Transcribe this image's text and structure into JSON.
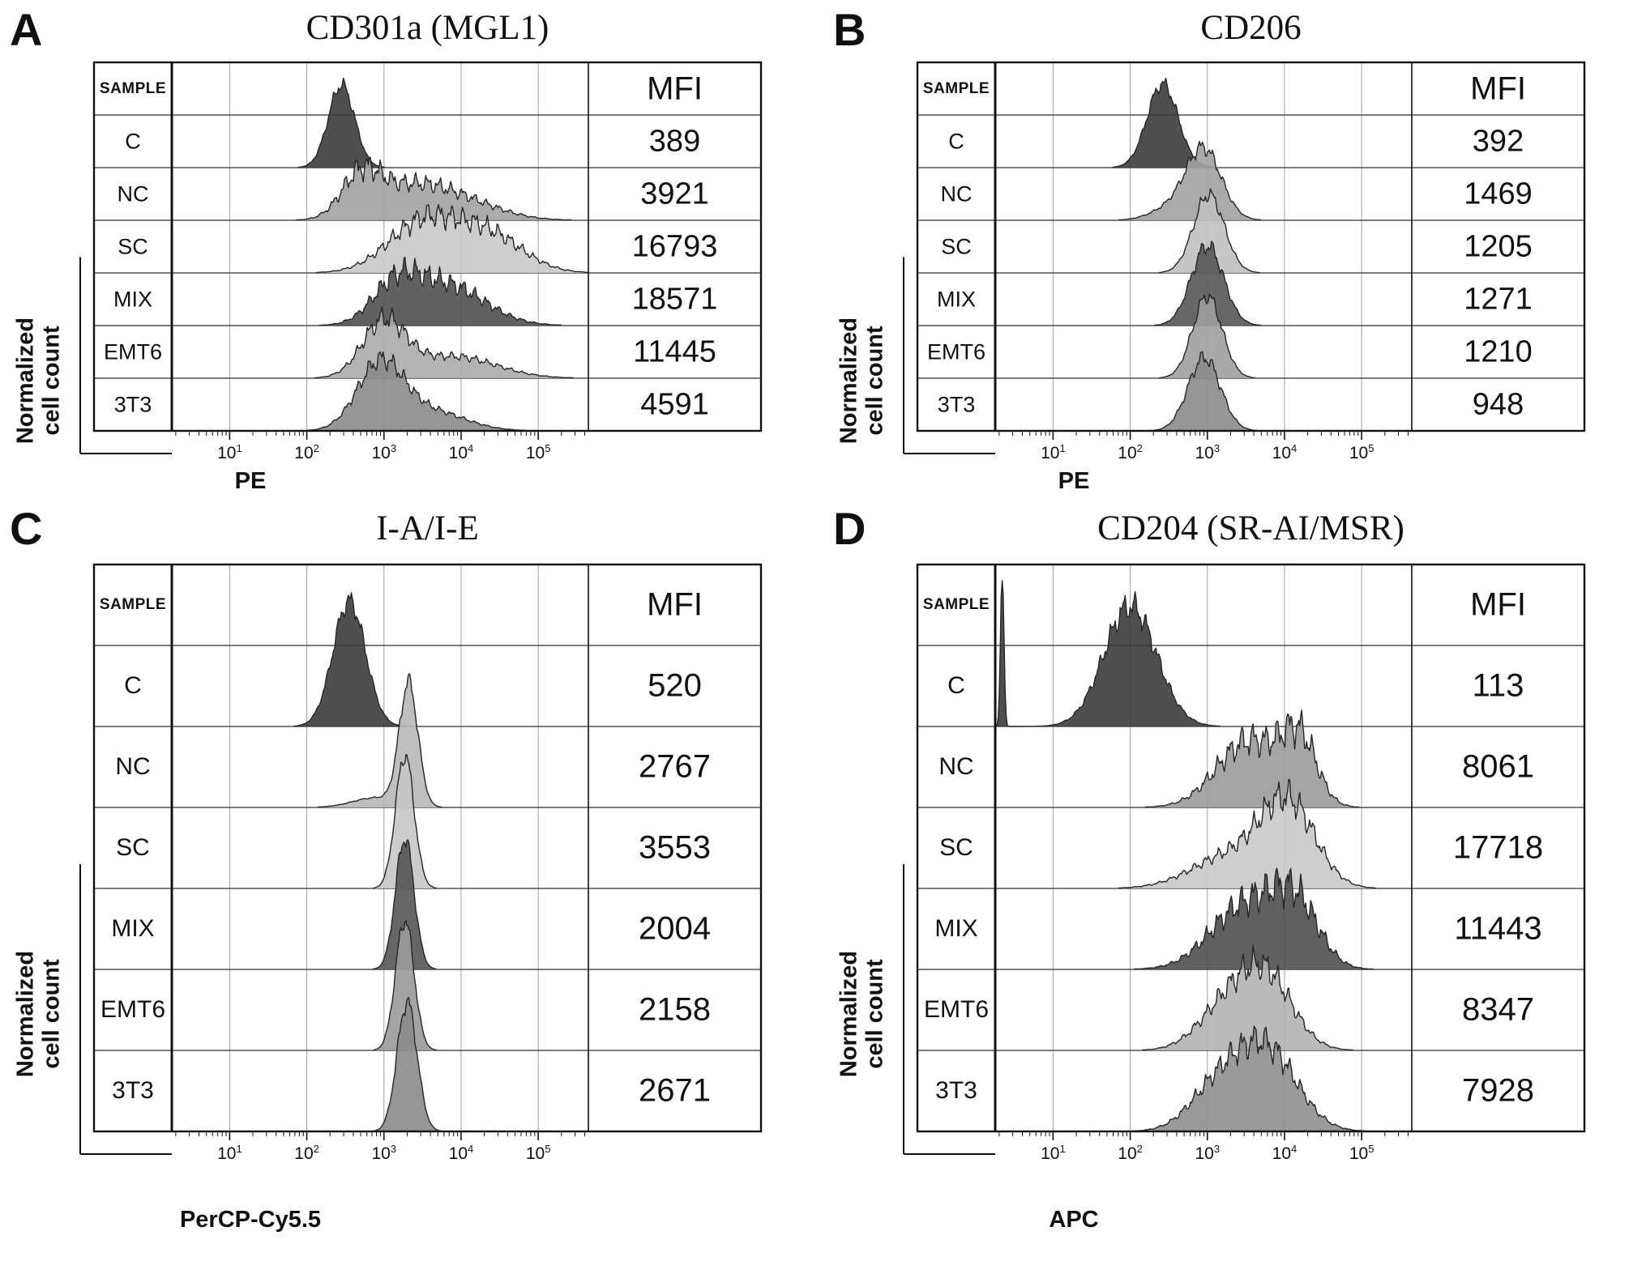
{
  "figure": {
    "x_tick_base": "10",
    "x_tick_exponents": [
      "1",
      "2",
      "3",
      "4",
      "5"
    ],
    "y_axis_label": "Normalized cell count",
    "y_axis_label_lines": [
      "Normalized",
      "cell count"
    ]
  },
  "chart_data": [
    {
      "type": "histogram",
      "panel_letter": "A",
      "title": "CD301a (MGL1)",
      "xlabel": "PE",
      "ylabel": "Normalized cell count",
      "x_scale": "log10",
      "x_range": [
        10,
        100000
      ],
      "x_ticks": [
        "10^1",
        "10^2",
        "10^3",
        "10^4",
        "10^5"
      ],
      "sample_header": "SAMPLE",
      "mfi_header": "MFI",
      "samples": [
        {
          "name": "C",
          "mfi": 389,
          "color": "#3c3c3c",
          "height": 1.7,
          "noise": 0.07,
          "peaks": [
            {
              "mu": 2.45,
              "sigma": 0.17,
              "amp": 1
            }
          ]
        },
        {
          "name": "NC",
          "mfi": 3921,
          "color": "#a2a2a2",
          "height": 1.2,
          "noise": 0.2,
          "peaks": [
            {
              "mu": 2.7,
              "sigma": 0.25,
              "amp": 1
            },
            {
              "mu": 3.3,
              "sigma": 0.45,
              "amp": 0.7
            },
            {
              "mu": 4.0,
              "sigma": 0.5,
              "amp": 0.45
            }
          ]
        },
        {
          "name": "SC",
          "mfi": 16793,
          "color": "#c9c9c9",
          "height": 1.3,
          "noise": 0.18,
          "peaks": [
            {
              "mu": 3.5,
              "sigma": 0.45,
              "amp": 1
            },
            {
              "mu": 4.35,
              "sigma": 0.45,
              "amp": 0.75
            }
          ]
        },
        {
          "name": "MIX",
          "mfi": 18571,
          "color": "#505050",
          "height": 1.3,
          "noise": 0.2,
          "peaks": [
            {
              "mu": 3.15,
              "sigma": 0.3,
              "amp": 0.85
            },
            {
              "mu": 3.8,
              "sigma": 0.5,
              "amp": 1
            }
          ]
        },
        {
          "name": "EMT6",
          "mfi": 11445,
          "color": "#ababab",
          "height": 1.35,
          "noise": 0.16,
          "peaks": [
            {
              "mu": 3.0,
              "sigma": 0.28,
              "amp": 1
            },
            {
              "mu": 3.9,
              "sigma": 0.55,
              "amp": 0.4
            }
          ]
        },
        {
          "name": "3T3",
          "mfi": 4591,
          "color": "#8b8b8b",
          "height": 1.5,
          "noise": 0.12,
          "peaks": [
            {
              "mu": 2.95,
              "sigma": 0.3,
              "amp": 1
            },
            {
              "mu": 3.6,
              "sigma": 0.45,
              "amp": 0.3
            }
          ]
        }
      ]
    },
    {
      "type": "histogram",
      "panel_letter": "B",
      "title": "CD206",
      "xlabel": "PE",
      "ylabel": "Normalized cell count",
      "x_scale": "log10",
      "x_range": [
        10,
        100000
      ],
      "x_ticks": [
        "10^1",
        "10^2",
        "10^3",
        "10^4",
        "10^5"
      ],
      "sample_header": "SAMPLE",
      "mfi_header": "MFI",
      "samples": [
        {
          "name": "C",
          "mfi": 392,
          "color": "#3c3c3c",
          "height": 1.7,
          "noise": 0.07,
          "peaks": [
            {
              "mu": 2.42,
              "sigma": 0.2,
              "amp": 1
            }
          ]
        },
        {
          "name": "NC",
          "mfi": 1469,
          "color": "#a2a2a2",
          "height": 1.5,
          "noise": 0.09,
          "peaks": [
            {
              "mu": 2.95,
              "sigma": 0.23,
              "amp": 1
            },
            {
              "mu": 2.5,
              "sigma": 0.25,
              "amp": 0.15
            }
          ]
        },
        {
          "name": "SC",
          "mfi": 1205,
          "color": "#c0c0c0",
          "height": 1.6,
          "noise": 0.08,
          "peaks": [
            {
              "mu": 3.02,
              "sigma": 0.2,
              "amp": 1
            }
          ]
        },
        {
          "name": "MIX",
          "mfi": 1271,
          "color": "#565656",
          "height": 1.6,
          "noise": 0.09,
          "peaks": [
            {
              "mu": 3.0,
              "sigma": 0.21,
              "amp": 1
            }
          ]
        },
        {
          "name": "EMT6",
          "mfi": 1210,
          "color": "#9e9e9e",
          "height": 1.6,
          "noise": 0.08,
          "peaks": [
            {
              "mu": 3.0,
              "sigma": 0.19,
              "amp": 1
            }
          ]
        },
        {
          "name": "3T3",
          "mfi": 948,
          "color": "#8b8b8b",
          "height": 1.5,
          "noise": 0.09,
          "peaks": [
            {
              "mu": 2.96,
              "sigma": 0.21,
              "amp": 1
            }
          ]
        }
      ]
    },
    {
      "type": "histogram",
      "panel_letter": "C",
      "title": "I-A/I-E",
      "xlabel": "PerCP-Cy5.5",
      "ylabel": "Normalized cell count",
      "x_scale": "log10",
      "x_range": [
        10,
        100000
      ],
      "x_ticks": [
        "10^1",
        "10^2",
        "10^3",
        "10^4",
        "10^5"
      ],
      "sample_header": "SAMPLE",
      "mfi_header": "MFI",
      "samples": [
        {
          "name": "C",
          "mfi": 520,
          "color": "#3c3c3c",
          "height": 1.65,
          "noise": 0.07,
          "peaks": [
            {
              "mu": 2.55,
              "sigma": 0.21,
              "amp": 1
            }
          ]
        },
        {
          "name": "NC",
          "mfi": 2767,
          "color": "#b8b8b8",
          "height": 1.65,
          "noise": 0.06,
          "peaks": [
            {
              "mu": 3.32,
              "sigma": 0.12,
              "amp": 1
            },
            {
              "mu": 2.9,
              "sigma": 0.3,
              "amp": 0.08
            }
          ]
        },
        {
          "name": "SC",
          "mfi": 3553,
          "color": "#c6c6c6",
          "height": 1.65,
          "noise": 0.06,
          "peaks": [
            {
              "mu": 3.27,
              "sigma": 0.12,
              "amp": 1
            }
          ]
        },
        {
          "name": "MIX",
          "mfi": 2004,
          "color": "#555555",
          "height": 1.6,
          "noise": 0.06,
          "peaks": [
            {
              "mu": 3.27,
              "sigma": 0.12,
              "amp": 1
            }
          ]
        },
        {
          "name": "EMT6",
          "mfi": 2158,
          "color": "#9a9a9a",
          "height": 1.6,
          "noise": 0.06,
          "peaks": [
            {
              "mu": 3.27,
              "sigma": 0.12,
              "amp": 1
            }
          ]
        },
        {
          "name": "3T3",
          "mfi": 2671,
          "color": "#8b8b8b",
          "height": 1.65,
          "noise": 0.06,
          "peaks": [
            {
              "mu": 3.3,
              "sigma": 0.13,
              "amp": 1
            }
          ]
        }
      ]
    },
    {
      "type": "histogram",
      "panel_letter": "D",
      "title": "CD204 (SR-AI/MSR)",
      "xlabel": "APC",
      "ylabel": "Normalized cell count",
      "x_scale": "log10",
      "x_range": [
        10,
        100000
      ],
      "x_ticks": [
        "10^1",
        "10^2",
        "10^3",
        "10^4",
        "10^5"
      ],
      "sample_header": "SAMPLE",
      "mfi_header": "MFI",
      "samples": [
        {
          "name": "C",
          "mfi": 113,
          "color": "#3c3c3c",
          "height": 1.8,
          "noise": 0.1,
          "peaks": [
            {
              "mu": 2.0,
              "sigma": 0.34,
              "amp": 0.9
            },
            {
              "mu": 0.34,
              "sigma": 0.022,
              "amp": 1.15
            }
          ]
        },
        {
          "name": "NC",
          "mfi": 8061,
          "color": "#9b9b9b",
          "height": 1.2,
          "noise": 0.2,
          "peaks": [
            {
              "mu": 3.55,
              "sigma": 0.42,
              "amp": 0.9
            },
            {
              "mu": 4.2,
              "sigma": 0.22,
              "amp": 0.8
            }
          ]
        },
        {
          "name": "SC",
          "mfi": 17718,
          "color": "#c9c9c9",
          "height": 1.35,
          "noise": 0.16,
          "peaks": [
            {
              "mu": 4.05,
              "sigma": 0.35,
              "amp": 1
            },
            {
              "mu": 3.3,
              "sigma": 0.5,
              "amp": 0.4
            }
          ]
        },
        {
          "name": "MIX",
          "mfi": 11443,
          "color": "#4f4f4f",
          "height": 1.25,
          "noise": 0.2,
          "peaks": [
            {
              "mu": 3.5,
              "sigma": 0.45,
              "amp": 0.95
            },
            {
              "mu": 4.15,
              "sigma": 0.3,
              "amp": 0.85
            }
          ]
        },
        {
          "name": "EMT6",
          "mfi": 8347,
          "color": "#b3b3b3",
          "height": 1.3,
          "noise": 0.16,
          "peaks": [
            {
              "mu": 3.75,
              "sigma": 0.35,
              "amp": 1
            },
            {
              "mu": 3.2,
              "sigma": 0.35,
              "amp": 0.5
            }
          ]
        },
        {
          "name": "3T3",
          "mfi": 7928,
          "color": "#8f8f8f",
          "height": 1.3,
          "noise": 0.15,
          "peaks": [
            {
              "mu": 3.75,
              "sigma": 0.4,
              "amp": 1
            },
            {
              "mu": 3.1,
              "sigma": 0.35,
              "amp": 0.45
            }
          ]
        }
      ]
    }
  ]
}
